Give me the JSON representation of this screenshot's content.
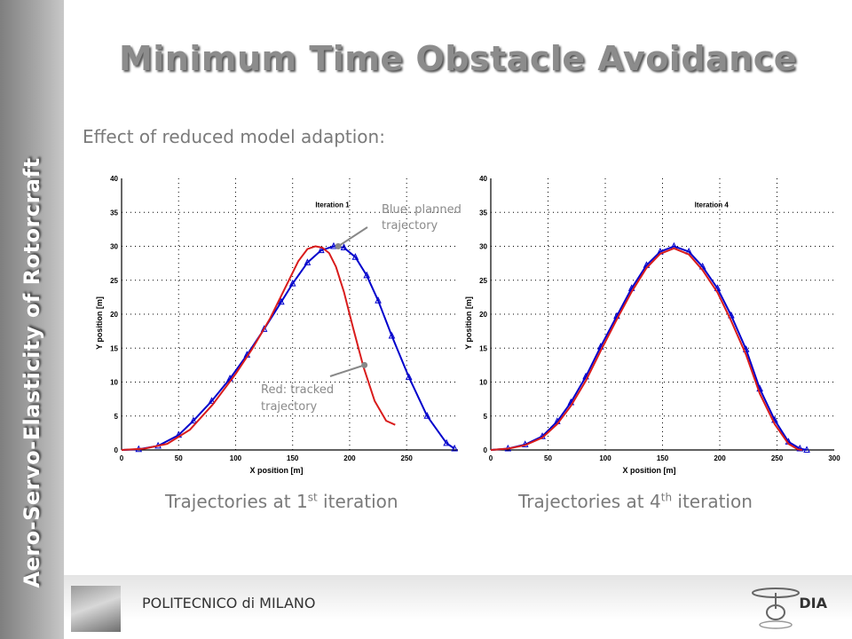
{
  "slide": {
    "sidebar_text": "Aero-Servo-Elasticity of Rotorcraft",
    "title": "Minimum Time Obstacle Avoidance",
    "subtitle": "Effect of reduced model adaption:",
    "footer_left": "POLITECNICO di MILANO",
    "footer_right": "DIA",
    "caption_left": {
      "prefix": "Trajectories at 1",
      "sup": "st",
      "suffix": " iteration"
    },
    "caption_right": {
      "prefix": "Trajectories at 4",
      "sup": "th",
      "suffix": " iteration"
    },
    "colors": {
      "sidebar": "#9a9a9a",
      "title": "#8c8c8c",
      "blue": "#0000cc",
      "red": "#d91c1c"
    }
  },
  "chart_data": [
    {
      "type": "line",
      "title": "Iteration 1",
      "xlabel": "X position [m]",
      "ylabel": "Y position [m]",
      "xlim": [
        0,
        295
      ],
      "ylim": [
        0,
        40
      ],
      "xticks": [
        "0",
        "50",
        "100",
        "150",
        "200",
        "250"
      ],
      "yticks": [
        "0",
        "5",
        "10",
        "15",
        "20",
        "25",
        "30",
        "35",
        "40"
      ],
      "grid": true,
      "series": [
        {
          "name": "Blue: planned trajectory",
          "color": "#0000cc",
          "marker": "triangle",
          "x": [
            0,
            15,
            32,
            50,
            63,
            79,
            95,
            110,
            125,
            140,
            150,
            163,
            175,
            186,
            195,
            205,
            215,
            225,
            237,
            252,
            268,
            285,
            292
          ],
          "y": [
            0,
            0.1,
            0.6,
            2.2,
            4.3,
            7.2,
            10.5,
            14.0,
            17.8,
            21.8,
            24.5,
            27.6,
            29.4,
            30.0,
            29.8,
            28.4,
            25.7,
            22.0,
            16.8,
            10.7,
            5.0,
            1.0,
            0.2
          ]
        },
        {
          "name": "Red: tracked trajectory",
          "color": "#d91c1c",
          "marker": "none",
          "x": [
            0,
            20,
            40,
            60,
            80,
            100,
            115,
            130,
            145,
            155,
            163,
            170,
            176,
            182,
            188,
            195,
            203,
            212,
            222,
            232,
            240
          ],
          "y": [
            0,
            0.2,
            0.9,
            3.0,
            6.7,
            11.2,
            15.0,
            19.3,
            24.4,
            27.8,
            29.6,
            30.0,
            29.8,
            29.0,
            27.0,
            23.3,
            18.0,
            12.3,
            7.2,
            4.3,
            3.7
          ]
        }
      ],
      "annotations": [
        {
          "text": "Blue: planned trajectory",
          "x": 190,
          "y": 30
        },
        {
          "text": "Red: tracked trajectory",
          "x": 213,
          "y": 12.5
        }
      ]
    },
    {
      "type": "line",
      "title": "Iteration 4",
      "xlabel": "X position [m]",
      "ylabel": "Y position [m]",
      "xlim": [
        0,
        300
      ],
      "ylim": [
        0,
        40
      ],
      "xticks": [
        "0",
        "50",
        "100",
        "150",
        "200",
        "250",
        "300"
      ],
      "yticks": [
        "0",
        "5",
        "10",
        "15",
        "20",
        "25",
        "30",
        "35",
        "40"
      ],
      "grid": true,
      "series": [
        {
          "name": "blue",
          "color": "#0000cc",
          "marker": "triangle",
          "x": [
            0,
            15,
            30,
            45,
            58,
            70,
            83,
            96,
            110,
            123,
            136,
            148,
            160,
            173,
            185,
            198,
            210,
            223,
            235,
            248,
            260,
            270,
            276
          ],
          "y": [
            0,
            0.2,
            0.8,
            2.0,
            4.2,
            7.0,
            10.8,
            15.2,
            19.7,
            23.8,
            27.2,
            29.2,
            30.0,
            29.2,
            27.0,
            23.8,
            19.8,
            14.8,
            9.0,
            4.4,
            1.2,
            0.2,
            0
          ]
        },
        {
          "name": "red",
          "color": "#d91c1c",
          "marker": "none",
          "x": [
            0,
            15,
            30,
            45,
            58,
            70,
            83,
            96,
            110,
            123,
            136,
            148,
            160,
            173,
            185,
            198,
            210,
            223,
            235,
            248,
            260,
            268,
            272
          ],
          "y": [
            0,
            0.2,
            0.7,
            1.8,
            3.8,
            6.5,
            10.2,
            14.6,
            19.2,
            23.3,
            26.8,
            28.9,
            29.7,
            28.8,
            26.5,
            23.2,
            19.0,
            14.0,
            8.3,
            3.8,
            0.9,
            0.1,
            0
          ]
        }
      ]
    }
  ]
}
